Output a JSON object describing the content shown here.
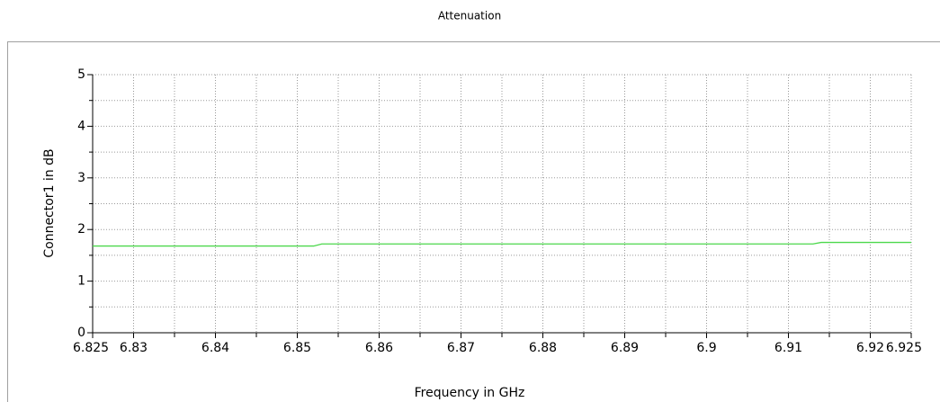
{
  "chart_data": {
    "type": "line",
    "title": "Attenuation",
    "xlabel": "Frequency in GHz",
    "ylabel": "Connector1 in dB",
    "x": [
      6.825,
      6.852,
      6.853,
      6.913,
      6.914,
      6.925
    ],
    "series": [
      {
        "name": "Connector1",
        "color": "#4cd84c",
        "values": [
          1.68,
          1.68,
          1.72,
          1.72,
          1.75,
          1.75
        ]
      }
    ],
    "xlim": [
      6.825,
      6.925
    ],
    "xticks": [
      6.825,
      6.83,
      6.84,
      6.85,
      6.86,
      6.87,
      6.88,
      6.89,
      6.9,
      6.91,
      6.92,
      6.925
    ],
    "ylim": [
      0,
      5
    ],
    "yticks": [
      0,
      1,
      2,
      3,
      4,
      5
    ],
    "grid": true
  }
}
